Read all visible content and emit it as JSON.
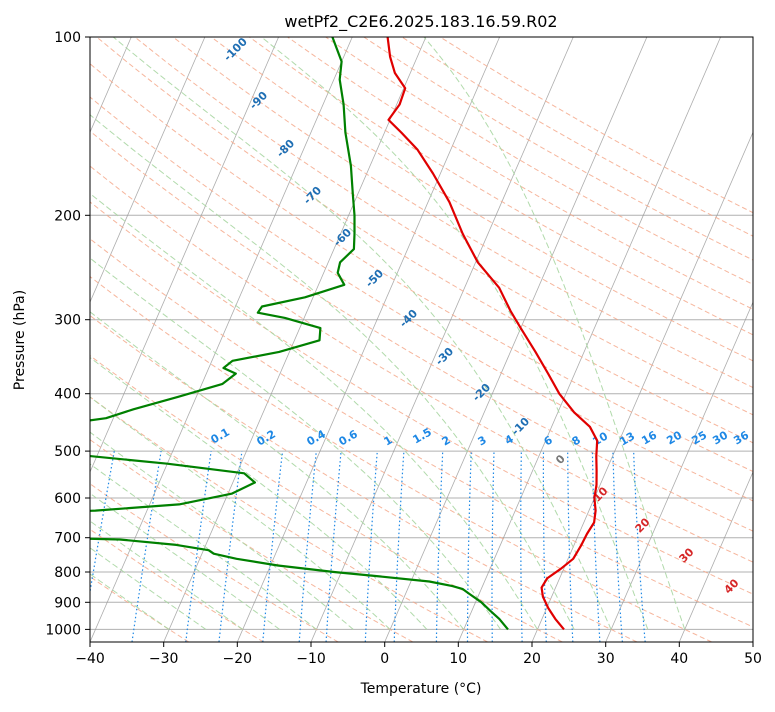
{
  "chart_data": {
    "type": "line",
    "title": "wetPf2_C2E6.2025.183.16.59.R02",
    "xlabel": "Temperature (°C)",
    "ylabel": "Pressure (hPa)",
    "xlim": [
      -40,
      50
    ],
    "ylim": [
      1050,
      100
    ],
    "y_scale": "log",
    "x_ticks": [
      -40,
      -30,
      -20,
      -10,
      0,
      10,
      20,
      30,
      40,
      50
    ],
    "y_ticks": [
      100,
      200,
      300,
      400,
      500,
      600,
      700,
      800,
      900,
      1000
    ],
    "grid": "horizontal at pressure ticks",
    "skew": "skew-T log-p diagram",
    "series": [
      {
        "color": "#e00000",
        "points": [
          {
            "p": 1000,
            "t": 23.6
          },
          {
            "p": 960,
            "t": 21.8
          },
          {
            "p": 920,
            "t": 20.2
          },
          {
            "p": 880,
            "t": 18.8
          },
          {
            "p": 850,
            "t": 18.1
          },
          {
            "p": 820,
            "t": 18.3
          },
          {
            "p": 790,
            "t": 19.6
          },
          {
            "p": 760,
            "t": 20.7
          },
          {
            "p": 720,
            "t": 21.0
          },
          {
            "p": 690,
            "t": 21.1
          },
          {
            "p": 660,
            "t": 21.4
          },
          {
            "p": 630,
            "t": 20.9
          },
          {
            "p": 600,
            "t": 20.0
          },
          {
            "p": 570,
            "t": 19.5
          },
          {
            "p": 540,
            "t": 18.7
          },
          {
            "p": 510,
            "t": 17.8
          },
          {
            "p": 480,
            "t": 17.0
          },
          {
            "p": 455,
            "t": 15.2
          },
          {
            "p": 430,
            "t": 12.2
          },
          {
            "p": 400,
            "t": 9.1
          },
          {
            "p": 370,
            "t": 6.4
          },
          {
            "p": 340,
            "t": 3.4
          },
          {
            "p": 310,
            "t": 0.0
          },
          {
            "p": 290,
            "t": -2.4
          },
          {
            "p": 265,
            "t": -5.3
          },
          {
            "p": 240,
            "t": -9.7
          },
          {
            "p": 215,
            "t": -13.4
          },
          {
            "p": 190,
            "t": -17.1
          },
          {
            "p": 170,
            "t": -21.0
          },
          {
            "p": 155,
            "t": -24.5
          },
          {
            "p": 145,
            "t": -27.7
          },
          {
            "p": 138,
            "t": -30.2
          },
          {
            "p": 130,
            "t": -29.6
          },
          {
            "p": 122,
            "t": -29.8
          },
          {
            "p": 115,
            "t": -32.1
          },
          {
            "p": 108,
            "t": -33.7
          },
          {
            "p": 100,
            "t": -35.2
          }
        ]
      },
      {
        "color": "#008000",
        "points": [
          {
            "p": 1000,
            "t": 16.0
          },
          {
            "p": 960,
            "t": 14.2
          },
          {
            "p": 930,
            "t": 12.5
          },
          {
            "p": 900,
            "t": 10.8
          },
          {
            "p": 870,
            "t": 8.6
          },
          {
            "p": 855,
            "t": 7.5
          },
          {
            "p": 845,
            "t": 5.9
          },
          {
            "p": 830,
            "t": 2.5
          },
          {
            "p": 815,
            "t": -4.0
          },
          {
            "p": 800,
            "t": -11.0
          },
          {
            "p": 780,
            "t": -19.0
          },
          {
            "p": 760,
            "t": -25.0
          },
          {
            "p": 745,
            "t": -28.4
          },
          {
            "p": 735,
            "t": -29.3
          },
          {
            "p": 720,
            "t": -34.0
          },
          {
            "p": 705,
            "t": -42.0
          },
          {
            "p": 700,
            "t": -52.0
          },
          {
            "p": 650,
            "t": -70.0
          },
          {
            "p": 640,
            "t": -60.0
          },
          {
            "p": 630,
            "t": -47.0
          },
          {
            "p": 615,
            "t": -36.0
          },
          {
            "p": 590,
            "t": -29.5
          },
          {
            "p": 565,
            "t": -27.0
          },
          {
            "p": 545,
            "t": -29.0
          },
          {
            "p": 525,
            "t": -40.0
          },
          {
            "p": 500,
            "t": -58.0
          },
          {
            "p": 480,
            "t": -70.0
          },
          {
            "p": 465,
            "t": -70.0
          },
          {
            "p": 455,
            "t": -59.0
          },
          {
            "p": 440,
            "t": -51.0
          },
          {
            "p": 425,
            "t": -47.8
          },
          {
            "p": 405,
            "t": -42.5
          },
          {
            "p": 385,
            "t": -37.2
          },
          {
            "p": 370,
            "t": -36.0
          },
          {
            "p": 362,
            "t": -38.0
          },
          {
            "p": 352,
            "t": -37.2
          },
          {
            "p": 340,
            "t": -31.4
          },
          {
            "p": 325,
            "t": -26.6
          },
          {
            "p": 310,
            "t": -27.2
          },
          {
            "p": 298,
            "t": -32.6
          },
          {
            "p": 292,
            "t": -36.6
          },
          {
            "p": 285,
            "t": -36.4
          },
          {
            "p": 275,
            "t": -31.1
          },
          {
            "p": 262,
            "t": -26.5
          },
          {
            "p": 250,
            "t": -28.1
          },
          {
            "p": 240,
            "t": -28.4
          },
          {
            "p": 228,
            "t": -27.3
          },
          {
            "p": 215,
            "t": -28.1
          },
          {
            "p": 200,
            "t": -29.2
          },
          {
            "p": 185,
            "t": -30.6
          },
          {
            "p": 165,
            "t": -32.6
          },
          {
            "p": 145,
            "t": -35.3
          },
          {
            "p": 130,
            "t": -37.2
          },
          {
            "p": 118,
            "t": -39.2
          },
          {
            "p": 110,
            "t": -40.0
          },
          {
            "p": 100,
            "t": -42.7
          }
        ]
      }
    ],
    "background_lines": {
      "dry_adiabat_labels": [
        "-100",
        "-90",
        "-80",
        "-70",
        "-60",
        "-50",
        "-40",
        "-30",
        "-20",
        "-10",
        "0",
        "10",
        "20",
        "30",
        "40"
      ],
      "mixing_ratio_labels": [
        "0.1",
        "0.2",
        "0.4",
        "0.6",
        "1",
        "1.5",
        "2",
        "3",
        "4",
        "6",
        "8",
        "10",
        "13",
        "16",
        "20",
        "25",
        "30",
        "36"
      ]
    },
    "colors": {
      "temperature": "#e00000",
      "dewpoint": "#008000",
      "isotherm": "#999999",
      "dry_adiabat": "#f4a98c",
      "moist_adiabat": "#a9d6a2",
      "mixing_ratio": "#1e88e5",
      "adiabat_label_blue": "#1f6fb4",
      "adiabat_label_red": "#d62728",
      "adiabat_label_gray": "#777777"
    }
  }
}
